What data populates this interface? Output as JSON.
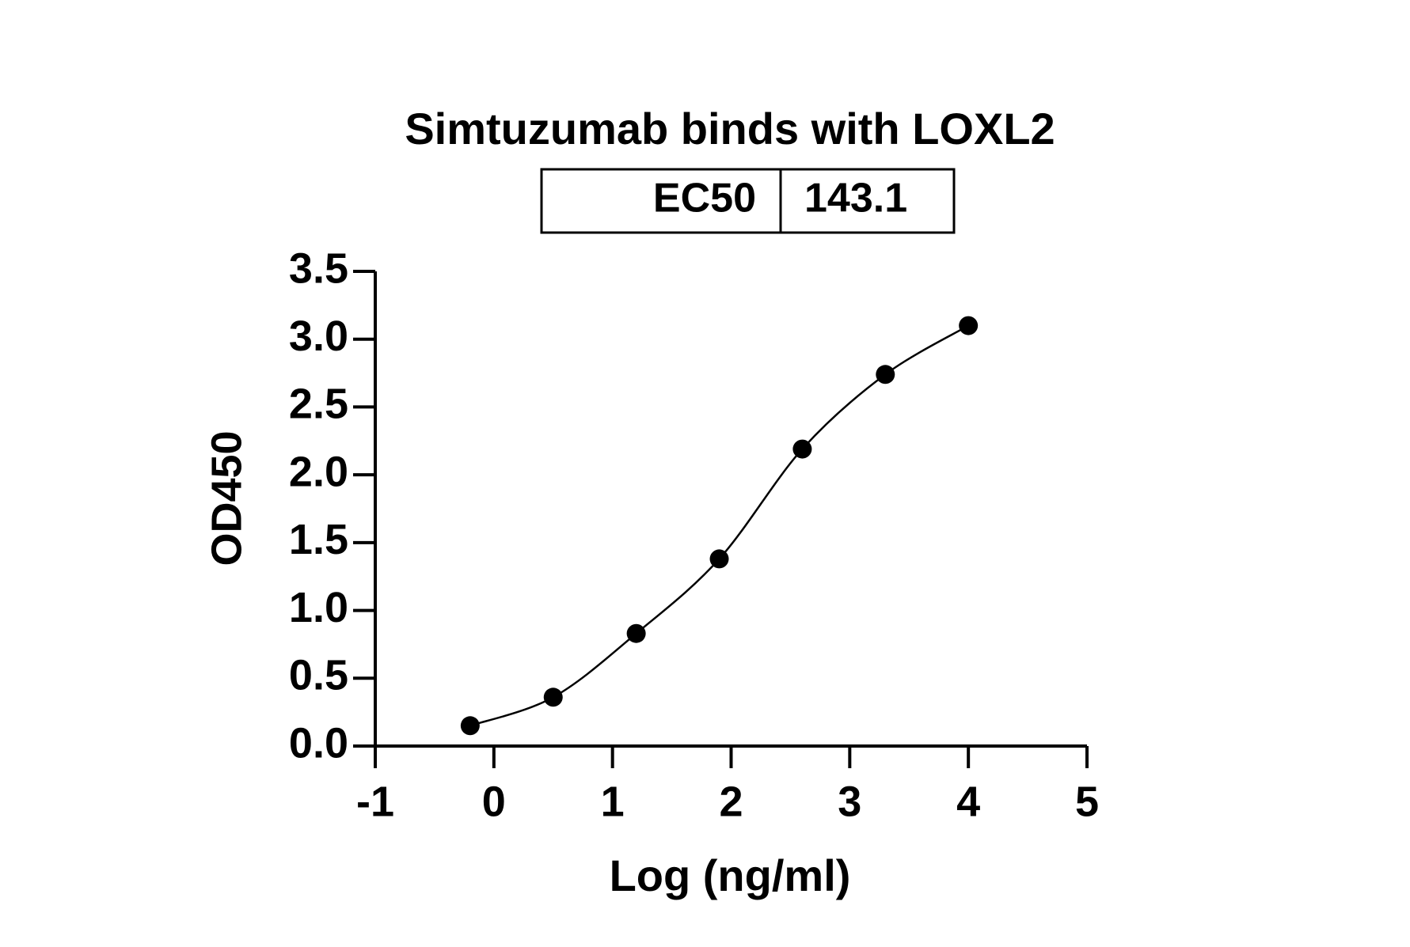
{
  "chart_data": {
    "type": "scatter",
    "title": "Simtuzumab binds with LOXL2",
    "ec50_table": {
      "label": "EC50",
      "value": "143.1"
    },
    "x_label": "Log (ng/ml)",
    "y_label": "OD450",
    "x": [
      -0.2,
      0.5,
      1.2,
      1.9,
      2.6,
      3.3,
      4.0
    ],
    "values": [
      0.15,
      0.36,
      0.83,
      1.38,
      2.19,
      2.74,
      3.1
    ],
    "color": "#000000",
    "fit_line": true,
    "xlim": [
      -1,
      5
    ],
    "xticks": [
      -1,
      0,
      1,
      2,
      3,
      4,
      5
    ],
    "ylim": [
      0,
      3.5
    ],
    "yticks": [
      {
        "value": 0,
        "label": "0.0"
      },
      0.5,
      {
        "value": 1,
        "label": "1.0"
      },
      1.5,
      {
        "value": 2,
        "label": "2.0"
      },
      2.5,
      {
        "value": 3,
        "label": "3.0"
      },
      3.5
    ]
  }
}
